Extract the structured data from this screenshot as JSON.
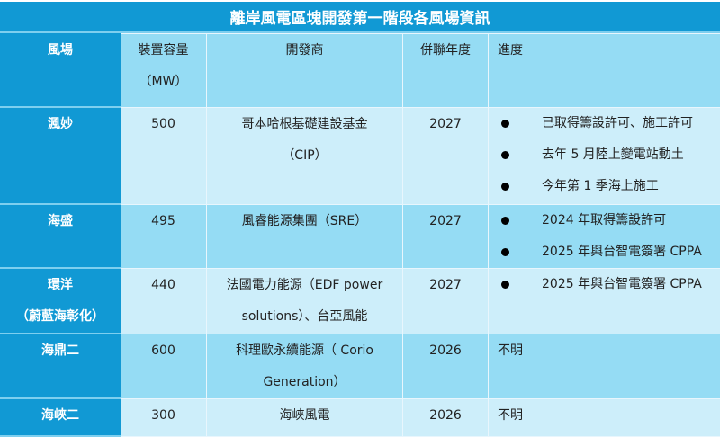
{
  "title": "離岸風電區塊開發第一階段各風場資訊",
  "colors": {
    "header_blue": "#1199d4",
    "row_dark": "#95dcf4",
    "row_light": "#cdeefa",
    "border": "#e8f6fd"
  },
  "columns": {
    "farm": "風場",
    "capacity_line1": "裝置容量",
    "capacity_line2": "（MW）",
    "developer": "開發商",
    "grid_year": "併聯年度",
    "progress": "進度"
  },
  "rows": [
    {
      "farm": "渢妙",
      "farm_sub": "",
      "capacity": "500",
      "developer_line1": "哥本哈根基礎建設基金",
      "developer_line2": "（CIP）",
      "grid_year": "2027",
      "progress": [
        "已取得籌設許可、施工許可",
        "去年 5 月陸上變電站動土",
        "今年第 1 季海上施工"
      ]
    },
    {
      "farm": "海盛",
      "farm_sub": "",
      "capacity": "495",
      "developer_line1": "風睿能源集團（SRE）",
      "developer_line2": "",
      "grid_year": "2027",
      "progress": [
        "2024 年取得籌設許可",
        "2025 年與台智電簽署 CPPA"
      ]
    },
    {
      "farm": "環洋",
      "farm_sub": "（蔚藍海彰化）",
      "capacity": "440",
      "developer_line1": "法國電力能源（EDF power",
      "developer_line2": "solutions）、台亞風能",
      "grid_year": "2027",
      "progress": [
        "2025 年與台智電簽署 CPPA"
      ]
    },
    {
      "farm": "海鼎二",
      "farm_sub": "",
      "capacity": "600",
      "developer_line1": "科理歐永續能源（ Corio",
      "developer_line2": "Generation）",
      "grid_year": "2026",
      "progress_text": "不明"
    },
    {
      "farm": "海峽二",
      "farm_sub": "",
      "capacity": "300",
      "developer_line1": "海峽風電",
      "developer_line2": "",
      "grid_year": "2026",
      "progress_text": "不明"
    }
  ]
}
